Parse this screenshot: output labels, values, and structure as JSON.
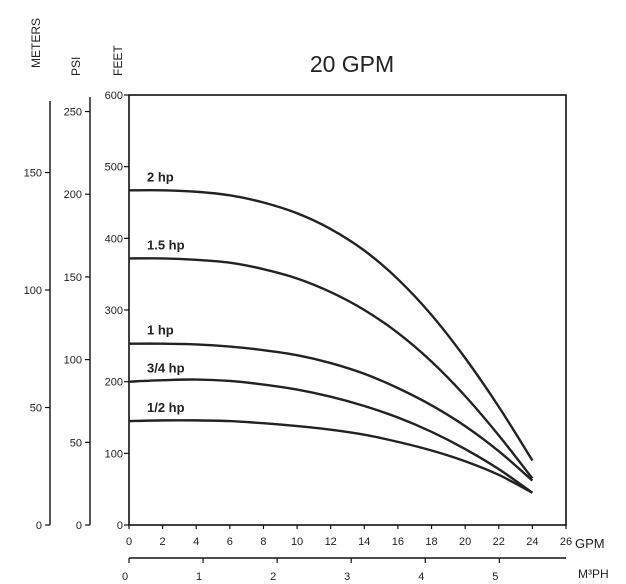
{
  "chart_data": {
    "type": "line",
    "title": "20 GPM",
    "x_primary": {
      "label": "GPM",
      "ticks": [
        "0",
        "2",
        "4",
        "6",
        "8",
        "10",
        "12",
        "14",
        "16",
        "18",
        "20",
        "22",
        "24",
        "26"
      ],
      "range": [
        0,
        26
      ]
    },
    "x_secondary": {
      "label": "M³PH",
      "ticks": [
        "0",
        "1",
        "2",
        "3",
        "4",
        "5"
      ],
      "range": [
        0,
        5.9
      ]
    },
    "y_feet": {
      "label": "FEET",
      "ticks": [
        "0",
        "100",
        "200",
        "300",
        "400",
        "500",
        "600"
      ],
      "range": [
        0,
        600
      ]
    },
    "y_psi": {
      "label": "PSI",
      "ticks": [
        "0",
        "50",
        "100",
        "150",
        "200",
        "250"
      ],
      "range": [
        0,
        260
      ]
    },
    "y_meters": {
      "label": "METERS",
      "ticks": [
        "0",
        "50",
        "100",
        "150"
      ],
      "range": [
        0,
        183
      ]
    },
    "series": [
      {
        "name": "2 hp",
        "x": [
          0,
          2,
          4,
          6,
          8,
          10,
          12,
          14,
          16,
          18,
          20,
          22,
          24
        ],
        "y": [
          467,
          467,
          465,
          460,
          450,
          435,
          413,
          383,
          343,
          293,
          233,
          165,
          90
        ]
      },
      {
        "name": "1.5 hp",
        "x": [
          0,
          2,
          4,
          6,
          8,
          10,
          12,
          14,
          16,
          18,
          20,
          22,
          24
        ],
        "y": [
          372,
          372,
          370,
          366,
          357,
          344,
          325,
          300,
          268,
          228,
          180,
          125,
          65
        ]
      },
      {
        "name": "1 hp",
        "x": [
          0,
          2,
          4,
          6,
          8,
          10,
          12,
          14,
          16,
          18,
          20,
          22,
          24
        ],
        "y": [
          253,
          253,
          252,
          249,
          244,
          237,
          226,
          211,
          191,
          167,
          138,
          103,
          62
        ]
      },
      {
        "name": "3/4 hp",
        "x": [
          0,
          2,
          4,
          6,
          8,
          10,
          12,
          14,
          16,
          18,
          20,
          22,
          24
        ],
        "y": [
          200,
          202,
          203,
          201,
          196,
          189,
          179,
          166,
          150,
          130,
          106,
          78,
          45
        ]
      },
      {
        "name": "1/2 hp",
        "x": [
          0,
          2,
          4,
          6,
          8,
          10,
          12,
          14,
          16,
          18,
          20,
          22,
          24
        ],
        "y": [
          145,
          146,
          146,
          145,
          142,
          138,
          133,
          126,
          116,
          104,
          89,
          70,
          45
        ]
      }
    ]
  }
}
